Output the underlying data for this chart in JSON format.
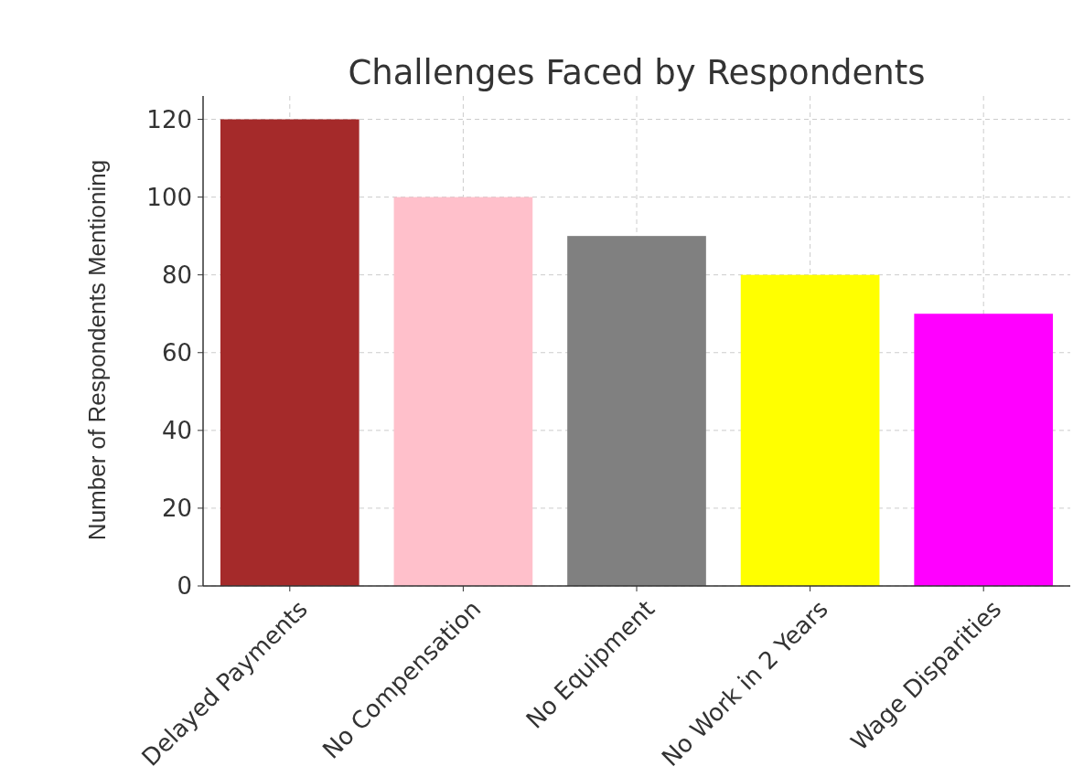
{
  "chart_data": {
    "type": "bar",
    "title": "Challenges Faced by Respondents",
    "ylabel": "Number of Respondents Mentioning",
    "categories": [
      "Delayed Payments",
      "No Compensation",
      "No Equipment",
      "No Work in 2 Years",
      "Wage Disparities"
    ],
    "values": [
      120,
      100,
      90,
      80,
      70
    ],
    "colors": [
      "#a52a2a",
      "#ffc0cb",
      "#808080",
      "#ffff00",
      "#ff00ff"
    ],
    "ylim": [
      0,
      126
    ],
    "yticks": [
      0,
      20,
      40,
      60,
      80,
      100,
      120
    ],
    "grid": true
  }
}
